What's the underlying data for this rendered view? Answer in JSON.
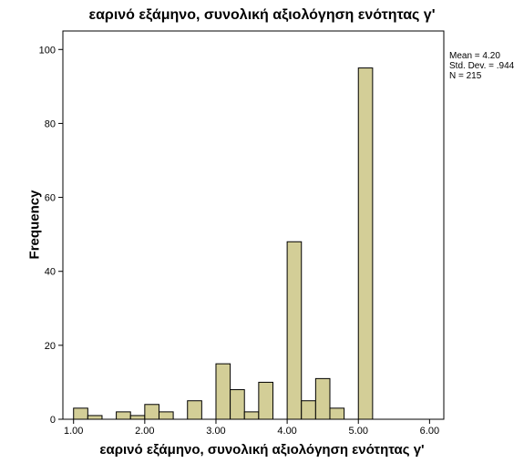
{
  "chart_data": {
    "type": "bar",
    "title": "εαρινό εξάμηνο, συνολική αξιολόγηση ενότητας γ'",
    "xlabel": "εαρινό εξάμηνο, συνολική αξιολόγηση ενότητας γ'",
    "ylabel": "Frequency",
    "xlim": [
      0.85,
      6.2
    ],
    "ylim": [
      0,
      105
    ],
    "x_ticks": [
      "1.00",
      "2.00",
      "3.00",
      "4.00",
      "5.00",
      "6.00"
    ],
    "y_ticks": [
      "0",
      "20",
      "40",
      "60",
      "80",
      "100"
    ],
    "bin_width": 0.2,
    "bins": [
      {
        "x0": 1.0,
        "count": 3
      },
      {
        "x0": 1.2,
        "count": 1
      },
      {
        "x0": 1.6,
        "count": 2
      },
      {
        "x0": 1.8,
        "count": 1
      },
      {
        "x0": 2.0,
        "count": 4
      },
      {
        "x0": 2.2,
        "count": 2
      },
      {
        "x0": 2.6,
        "count": 5
      },
      {
        "x0": 3.0,
        "count": 15
      },
      {
        "x0": 3.2,
        "count": 8
      },
      {
        "x0": 3.4,
        "count": 2
      },
      {
        "x0": 3.6,
        "count": 10
      },
      {
        "x0": 4.0,
        "count": 48
      },
      {
        "x0": 4.2,
        "count": 5
      },
      {
        "x0": 4.4,
        "count": 11
      },
      {
        "x0": 4.6,
        "count": 3
      },
      {
        "x0": 5.0,
        "count": 95
      }
    ],
    "stats": {
      "mean": "Mean = 4.20",
      "std": "Std. Dev. = .944",
      "n": "N = 215"
    },
    "colors": {
      "bar_fill": "#d3ce97",
      "bar_stroke": "#000000"
    }
  }
}
